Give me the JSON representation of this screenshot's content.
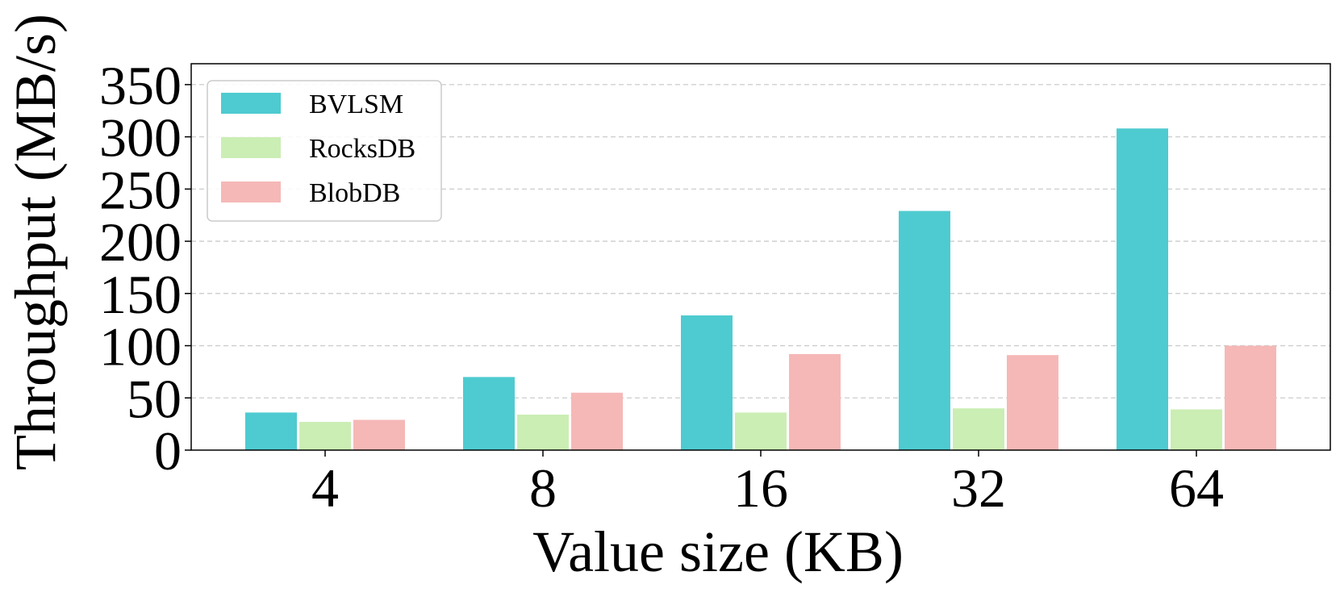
{
  "chart_data": {
    "type": "bar",
    "title": "",
    "xlabel": "Value size (KB)",
    "ylabel": "Throughput (MB/s)",
    "categories": [
      "4",
      "8",
      "16",
      "32",
      "64"
    ],
    "ylim": [
      0,
      370
    ],
    "yticks": [
      0,
      50,
      100,
      150,
      200,
      250,
      300,
      350
    ],
    "grid": "horizontal-dashed",
    "legend_position": "top-left",
    "series": [
      {
        "name": "BVLSM",
        "color": "#4ECBD0",
        "values": [
          36,
          70,
          129,
          229,
          308
        ]
      },
      {
        "name": "RocksDB",
        "color": "#CBEEB4",
        "values": [
          27,
          34,
          36,
          40,
          39
        ]
      },
      {
        "name": "BlobDB",
        "color": "#F5B8B7",
        "values": [
          29,
          55,
          92,
          91,
          100
        ]
      }
    ]
  }
}
